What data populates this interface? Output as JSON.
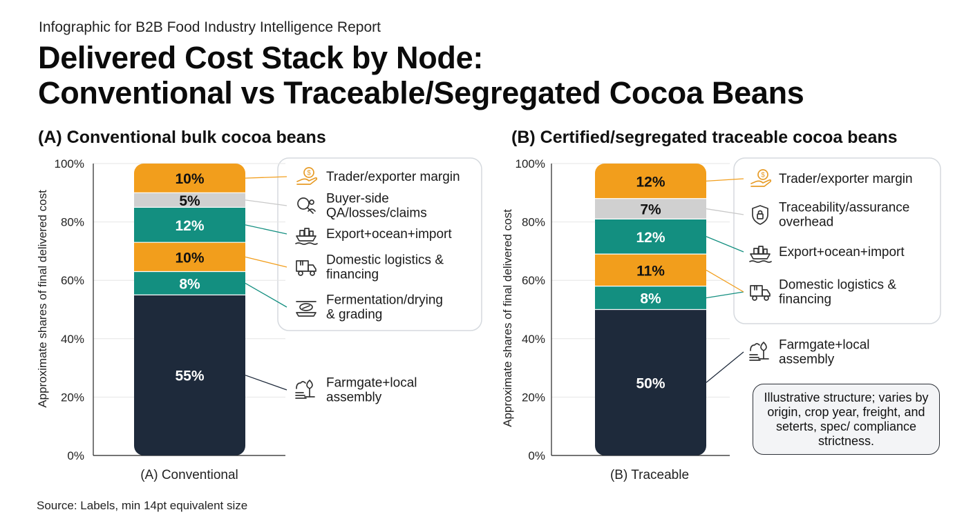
{
  "eyebrow": "Infographic for B2B Food Industry Intelligence Report",
  "title_line1": "Delivered Cost Stack by Node:",
  "title_line2": "Conventional vs Traceable/Segregated Cocoa Beans",
  "source": "Source: Labels, min 14pt equivalent size",
  "callout": "Illustrative structure; varies by origin, crop year, freight, and seterts, spec/ compliance strictness.",
  "colors": {
    "dark": "#1e2a3b",
    "teal": "#138f80",
    "orange": "#f29e1c",
    "gray": "#d0d0d0",
    "icon_orange": "#e79b26"
  },
  "chart_data": [
    {
      "type": "bar",
      "stacked": true,
      "title": "(A) Conventional bulk cocoa beans",
      "category": "(A) Conventional",
      "ylabel": "Approximate shares of final delivered cost",
      "ylim": [
        0,
        100
      ],
      "yticks": [
        "0%",
        "20%",
        "40%",
        "60%",
        "80%",
        "100%"
      ],
      "segments": [
        {
          "name": "Farmgate+local assembly",
          "value": 55,
          "label": "55%",
          "color": "#1e2a3b",
          "icon": "farm-icon",
          "legend_lines": [
            "Farmgate+local",
            "assembly"
          ]
        },
        {
          "name": "Fermentation/drying & grading",
          "value": 8,
          "label": "8%",
          "color": "#138f80",
          "icon": "drying-tray-icon",
          "legend_lines": [
            "Fermentation/drying",
            "& grading"
          ]
        },
        {
          "name": "Domestic logistics & financing",
          "value": 10,
          "label": "10%",
          "color": "#f29e1c",
          "icon": "truck-icon",
          "legend_lines": [
            "Domestic logistics &",
            "financing"
          ]
        },
        {
          "name": "Export+ocean+import",
          "value": 12,
          "label": "12%",
          "color": "#138f80",
          "icon": "ship-icon",
          "legend_lines": [
            "Export+ocean+import"
          ]
        },
        {
          "name": "Buyer-side QA/losses/claims",
          "value": 5,
          "label": "5%",
          "color": "#d0d0d0",
          "icon": "quality-inspection-icon",
          "legend_lines": [
            "Buyer-side",
            "QA/losses/claims"
          ]
        },
        {
          "name": "Trader/exporter margin",
          "value": 10,
          "label": "10%",
          "color": "#f29e1c",
          "icon": "margin-coin-hand-icon",
          "legend_lines": [
            "Trader/exporter margin"
          ]
        }
      ]
    },
    {
      "type": "bar",
      "stacked": true,
      "title": "(B) Certified/segregated traceable cocoa beans",
      "category": "(B) Traceable",
      "ylabel": "Approximate shares of final delivered cost",
      "ylim": [
        0,
        100
      ],
      "yticks": [
        "0%",
        "20%",
        "40%",
        "60%",
        "80%",
        "100%"
      ],
      "segments": [
        {
          "name": "Farmgate+local assembly",
          "value": 50,
          "label": "50%",
          "color": "#1e2a3b",
          "icon": "farm-icon",
          "legend_lines": [
            "Farmgate+local",
            "assembly"
          ]
        },
        {
          "name": "Fermentation/drying & grading",
          "value": 8,
          "label": "8%",
          "color": "#138f80",
          "icon": "",
          "legend_lines": []
        },
        {
          "name": "Domestic logistics & financing",
          "value": 11,
          "label": "11%",
          "color": "#f29e1c",
          "icon": "truck-icon",
          "legend_lines": [
            "Domestic logistics &",
            "financing"
          ]
        },
        {
          "name": "Export+ocean+import",
          "value": 12,
          "label": "12%",
          "color": "#138f80",
          "icon": "ship-icon",
          "legend_lines": [
            "Export+ocean+import"
          ]
        },
        {
          "name": "Traceability/assurance overhead",
          "value": 7,
          "label": "7%",
          "color": "#d0d0d0",
          "icon": "shield-lock-icon",
          "legend_lines": [
            "Traceability/assurance",
            "overhead"
          ]
        },
        {
          "name": "Trader/exporter margin",
          "value": 12,
          "label": "12%",
          "color": "#f29e1c",
          "icon": "margin-coin-hand-icon",
          "legend_lines": [
            "Trader/exporter margin"
          ]
        }
      ]
    }
  ]
}
